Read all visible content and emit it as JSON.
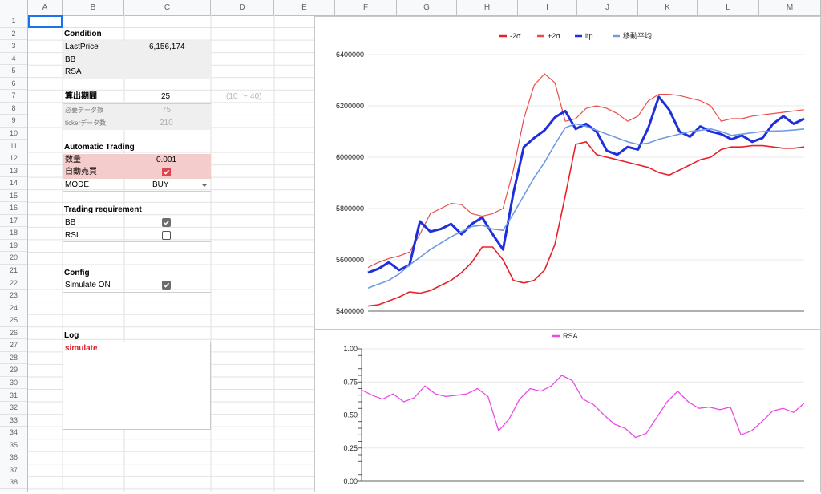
{
  "columns": [
    "A",
    "B",
    "C",
    "D",
    "E",
    "F",
    "G",
    "H",
    "I",
    "J",
    "K",
    "L",
    "M"
  ],
  "rows": [
    "1",
    "2",
    "3",
    "4",
    "5",
    "6",
    "7",
    "8",
    "9",
    "10",
    "11",
    "12",
    "13",
    "14",
    "15",
    "16",
    "17",
    "18",
    "19",
    "20",
    "21",
    "22",
    "23",
    "24",
    "25",
    "26",
    "27",
    "28",
    "29",
    "30",
    "31",
    "32",
    "33",
    "34",
    "35",
    "36",
    "37",
    "38"
  ],
  "condition": {
    "title": "Condition",
    "last_price_label": "LastPrice",
    "last_price_value": "6,156,174",
    "bb_label": "BB",
    "rsa_label": "RSA"
  },
  "period": {
    "label": "算出期間",
    "value": "25",
    "range": "(10 〜 40)",
    "required_label": "必要データ数",
    "required_value": "75",
    "ticker_label": "tickerデータ数",
    "ticker_value": "210"
  },
  "auto_trading": {
    "title": "Automatic Trading",
    "qty_label": "数量",
    "qty_value": "0.001",
    "auto_label": "自動売買",
    "auto_checked": true,
    "mode_label": "MODE",
    "mode_value": "BUY"
  },
  "trading_req": {
    "title": "Trading requirement",
    "bb_label": "BB",
    "bb_checked": true,
    "rsi_label": "RSI",
    "rsi_checked": false
  },
  "config": {
    "title": "Config",
    "simulate_label": "Simulate ON",
    "simulate_checked": true
  },
  "log": {
    "title": "Log",
    "text": "simulate"
  },
  "colors": {
    "minus2s": "#e8202a",
    "plus2s": "#ea4c4c",
    "ltp": "#1f2fdb",
    "ma": "#6e9be0",
    "rsa": "#e94be3",
    "red_text": "#e01e26",
    "header_bg": "#f8f9fa"
  },
  "chart_data": [
    {
      "type": "line",
      "legend": "top-center",
      "ylim": [
        5400000,
        6400000
      ],
      "yticks": [
        "6400000",
        "6200000",
        "6000000",
        "5800000",
        "5600000",
        "5400000"
      ],
      "x": [
        0,
        5,
        10,
        15,
        20,
        25,
        30,
        35,
        40,
        45,
        50,
        55,
        60,
        65,
        70,
        75,
        80,
        85,
        90,
        95,
        100,
        105,
        110,
        115,
        120,
        125,
        130,
        135,
        140,
        145,
        150,
        155,
        160,
        165,
        170,
        175,
        180,
        185,
        190,
        195,
        200,
        205,
        210
      ],
      "series": [
        {
          "name": "-2σ",
          "values": [
            5420000,
            5425000,
            5440000,
            5455000,
            5475000,
            5470000,
            5480000,
            5500000,
            5520000,
            5550000,
            5590000,
            5650000,
            5650000,
            5600000,
            5520000,
            5510000,
            5520000,
            5560000,
            5660000,
            5850000,
            6050000,
            6060000,
            6010000,
            6000000,
            5990000,
            5980000,
            5970000,
            5960000,
            5940000,
            5930000,
            5950000,
            5970000,
            5990000,
            6000000,
            6030000,
            6040000,
            6040000,
            6045000,
            6045000,
            6040000,
            6035000,
            6035000,
            6040000
          ]
        },
        {
          "name": "+2σ",
          "values": [
            5570000,
            5590000,
            5605000,
            5615000,
            5630000,
            5700000,
            5780000,
            5800000,
            5820000,
            5815000,
            5780000,
            5770000,
            5780000,
            5800000,
            5950000,
            6150000,
            6280000,
            6325000,
            6290000,
            6140000,
            6150000,
            6190000,
            6200000,
            6190000,
            6170000,
            6140000,
            6160000,
            6220000,
            6245000,
            6245000,
            6240000,
            6230000,
            6220000,
            6200000,
            6140000,
            6150000,
            6150000,
            6160000,
            6165000,
            6170000,
            6175000,
            6180000,
            6185000
          ]
        },
        {
          "name": "ltp",
          "values": [
            5550000,
            5565000,
            5590000,
            5560000,
            5580000,
            5750000,
            5710000,
            5720000,
            5740000,
            5700000,
            5740000,
            5765000,
            5700000,
            5640000,
            5860000,
            6040000,
            6075000,
            6105000,
            6155000,
            6180000,
            6110000,
            6130000,
            6100000,
            6025000,
            6010000,
            6040000,
            6030000,
            6115000,
            6235000,
            6185000,
            6100000,
            6080000,
            6120000,
            6100000,
            6090000,
            6070000,
            6085000,
            6060000,
            6075000,
            6130000,
            6160000,
            6130000,
            6150000
          ]
        },
        {
          "name": "移動平均",
          "values": [
            5490000,
            5505000,
            5520000,
            5545000,
            5580000,
            5610000,
            5640000,
            5665000,
            5690000,
            5710000,
            5730000,
            5735000,
            5720000,
            5715000,
            5780000,
            5850000,
            5920000,
            5980000,
            6050000,
            6115000,
            6130000,
            6120000,
            6105000,
            6090000,
            6075000,
            6060000,
            6050000,
            6055000,
            6070000,
            6080000,
            6090000,
            6100000,
            6105000,
            6110000,
            6100000,
            6085000,
            6090000,
            6095000,
            6100000,
            6102000,
            6103000,
            6106000,
            6110000
          ]
        }
      ]
    },
    {
      "type": "line",
      "legend": "top-center",
      "ylim": [
        0,
        1
      ],
      "yticks": [
        "1.00",
        "0.75",
        "0.50",
        "0.25",
        "0.00"
      ],
      "x": [
        0,
        5,
        10,
        15,
        20,
        25,
        30,
        35,
        40,
        45,
        50,
        55,
        60,
        65,
        70,
        75,
        80,
        85,
        90,
        95,
        100,
        105,
        110,
        115,
        120,
        125,
        130,
        135,
        140,
        145,
        150,
        155,
        160,
        165,
        170,
        175,
        180,
        185,
        190,
        195,
        200,
        205,
        210
      ],
      "series": [
        {
          "name": "RSA",
          "values": [
            0.69,
            0.65,
            0.62,
            0.66,
            0.6,
            0.63,
            0.72,
            0.66,
            0.64,
            0.65,
            0.66,
            0.7,
            0.64,
            0.38,
            0.47,
            0.62,
            0.7,
            0.68,
            0.72,
            0.8,
            0.76,
            0.62,
            0.58,
            0.5,
            0.43,
            0.4,
            0.33,
            0.36,
            0.48,
            0.6,
            0.68,
            0.6,
            0.55,
            0.56,
            0.54,
            0.56,
            0.35,
            0.38,
            0.45,
            0.53,
            0.55,
            0.52,
            0.59
          ]
        }
      ]
    }
  ]
}
